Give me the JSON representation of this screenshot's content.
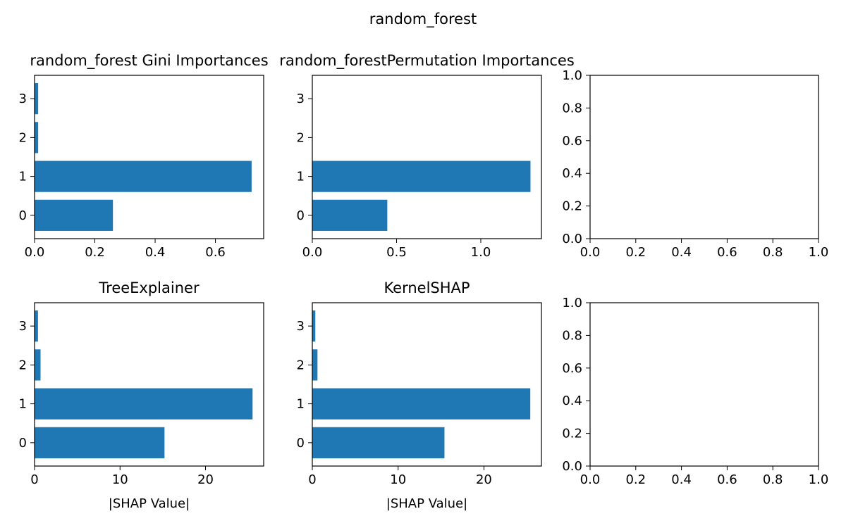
{
  "suptitle": "random_forest",
  "bar_color": "#1f77b4",
  "chart_data": [
    {
      "type": "bar",
      "orientation": "horizontal",
      "title": "random_forest Gini Importances",
      "xlabel": "",
      "ylabel": "",
      "categories": [
        "0",
        "1",
        "2",
        "3"
      ],
      "values": [
        0.26,
        0.72,
        0.012,
        0.012
      ],
      "xlim": [
        0,
        0.76
      ],
      "xticks": [
        0.0,
        0.2,
        0.4,
        0.6
      ],
      "xtick_labels": [
        "0.0",
        "0.2",
        "0.4",
        "0.6"
      ],
      "grid": false
    },
    {
      "type": "bar",
      "orientation": "horizontal",
      "title": "random_forestPermutation Importances",
      "xlabel": "",
      "ylabel": "",
      "categories": [
        "0",
        "1",
        "2",
        "3"
      ],
      "values": [
        0.445,
        1.295,
        0.0,
        0.0
      ],
      "xlim": [
        0,
        1.36
      ],
      "xticks": [
        0.0,
        0.5,
        1.0
      ],
      "xtick_labels": [
        "0.0",
        "0.5",
        "1.0"
      ],
      "grid": false
    },
    {
      "type": "empty",
      "title": "",
      "xlim": [
        0,
        1
      ],
      "ylim": [
        0,
        1
      ],
      "xtick_labels": [
        "0.0",
        "0.2",
        "0.4",
        "0.6",
        "0.8",
        "1.0"
      ],
      "ytick_labels": [
        "0.0",
        "0.2",
        "0.4",
        "0.6",
        "0.8",
        "1.0"
      ]
    },
    {
      "type": "bar",
      "orientation": "horizontal",
      "title": "TreeExplainer",
      "xlabel": "|SHAP Value|",
      "ylabel": "",
      "categories": [
        "0",
        "1",
        "2",
        "3"
      ],
      "values": [
        15.2,
        25.5,
        0.7,
        0.4
      ],
      "xlim": [
        0,
        26.8
      ],
      "xticks": [
        0,
        10,
        20
      ],
      "xtick_labels": [
        "0",
        "10",
        "20"
      ],
      "grid": false
    },
    {
      "type": "bar",
      "orientation": "horizontal",
      "title": "KernelSHAP",
      "xlabel": "|SHAP Value|",
      "ylabel": "",
      "categories": [
        "0",
        "1",
        "2",
        "3"
      ],
      "values": [
        15.4,
        25.4,
        0.6,
        0.35
      ],
      "xlim": [
        0,
        26.7
      ],
      "xticks": [
        0,
        10,
        20
      ],
      "xtick_labels": [
        "0",
        "10",
        "20"
      ],
      "grid": false
    },
    {
      "type": "empty",
      "title": "",
      "xlim": [
        0,
        1
      ],
      "ylim": [
        0,
        1
      ],
      "xtick_labels": [
        "0.0",
        "0.2",
        "0.4",
        "0.6",
        "0.8",
        "1.0"
      ],
      "ytick_labels": [
        "0.0",
        "0.2",
        "0.4",
        "0.6",
        "0.8",
        "1.0"
      ]
    }
  ]
}
